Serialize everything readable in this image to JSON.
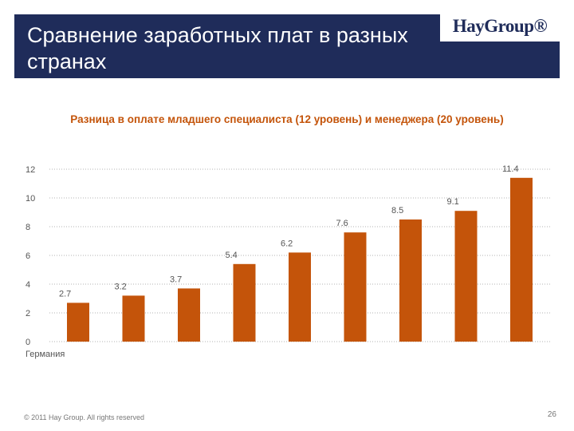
{
  "slide": {
    "title": "Сравнение заработных плат в разных странах",
    "logo": "HayGroup®",
    "subtitle": "Разница в оплате младшего специалиста (12 уровень) и менеджера (20 уровень)",
    "footer": "© 2011 Hay Group. All rights reserved",
    "page_number": "26"
  },
  "colors": {
    "title_bar": "#1f2c5a",
    "bar": "#c4540a",
    "subtitle": "#c4540a"
  },
  "chart_data": {
    "type": "bar",
    "title": "",
    "xlabel": "",
    "ylabel": "",
    "categories": [
      "Германия",
      "",
      "",
      "",
      "",
      "",
      "",
      "",
      ""
    ],
    "values": [
      2.7,
      3.2,
      3.7,
      5.4,
      6.2,
      7.6,
      8.5,
      9.1,
      11.4
    ],
    "data_labels": [
      "2.7",
      "3.2",
      "3.7",
      "5.4",
      "6.2",
      "7.6",
      "8.5",
      "9.1",
      "11.4"
    ],
    "yticks": [
      0,
      2,
      4,
      6,
      8,
      10,
      12
    ],
    "ylim": [
      0,
      12
    ],
    "grid": true
  }
}
